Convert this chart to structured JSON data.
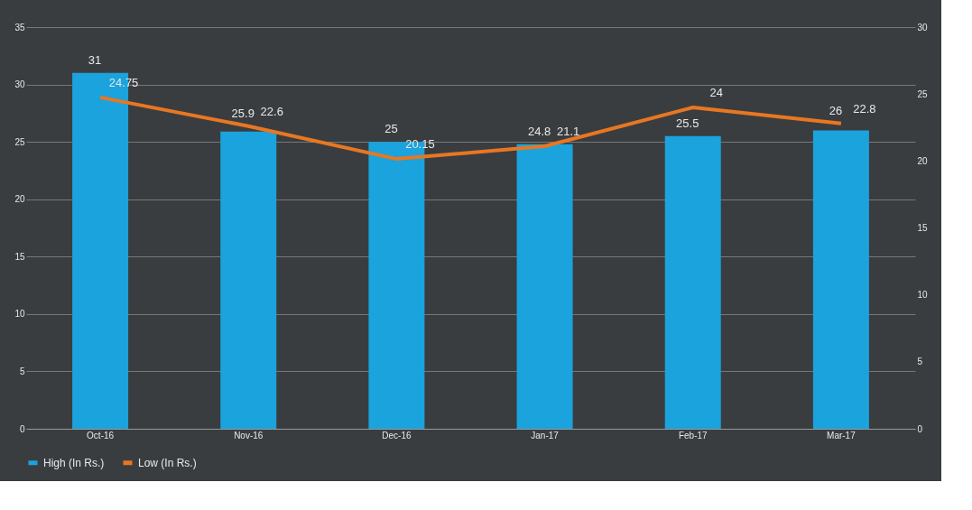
{
  "chart_data": {
    "type": "bar",
    "categories": [
      "Oct-16",
      "Nov-16",
      "Dec-16",
      "Jan-17",
      "Feb-17",
      "Mar-17"
    ],
    "series": [
      {
        "name": "High (In Rs.)",
        "color": "#1aa3dc",
        "values": [
          31,
          25.9,
          25,
          24.8,
          25.5,
          26
        ]
      },
      {
        "name": "Low (In Rs.)",
        "type": "line",
        "axis": "y2",
        "color": "#e87722",
        "values": [
          24.75,
          22.6,
          20.15,
          21.1,
          24,
          22.8
        ]
      }
    ],
    "ylim": [
      0,
      35
    ],
    "yticks": [
      0,
      5,
      10,
      15,
      20,
      25,
      30,
      35
    ],
    "y2lim": [
      0,
      30
    ],
    "y2ticks": [
      0,
      5,
      10,
      15,
      20,
      25,
      30
    ],
    "grid": "y",
    "legend": "bottom",
    "data_labels": true,
    "marker": "none",
    "line_style": "solid"
  }
}
